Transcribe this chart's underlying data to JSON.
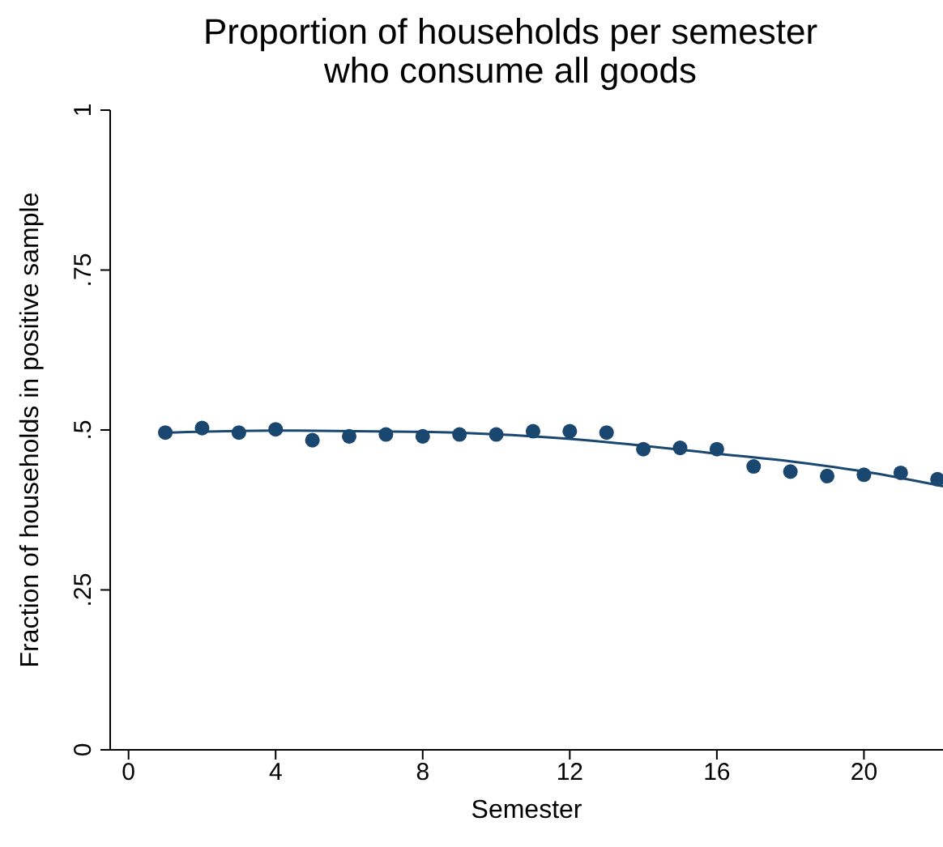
{
  "chart_data": {
    "type": "scatter",
    "title": "Proportion of households per semester\nwho consume all goods",
    "xlabel": "Semester",
    "ylabel": "Fraction of households in positive sample",
    "xlim": [
      -0.5,
      22.15
    ],
    "xticks": [
      0,
      4,
      8,
      12,
      16,
      20
    ],
    "ylim": [
      0,
      1
    ],
    "yticks": [
      {
        "value": 0,
        "label": "0"
      },
      {
        "value": 0.25,
        "label": ".25"
      },
      {
        "value": 0.5,
        "label": ".5"
      },
      {
        "value": 0.75,
        "label": ".75"
      },
      {
        "value": 1,
        "label": "1"
      }
    ],
    "grid": false,
    "marker": "circle",
    "series": [
      {
        "color": "#1a476f",
        "x": [
          1,
          2,
          3,
          4,
          5,
          6,
          7,
          8,
          9,
          10,
          11,
          12,
          13,
          14,
          15,
          16,
          17,
          18,
          19,
          20,
          21,
          22
        ],
        "values": [
          0.496,
          0.503,
          0.496,
          0.501,
          0.484,
          0.49,
          0.493,
          0.49,
          0.493,
          0.493,
          0.498,
          0.498,
          0.496,
          0.47,
          0.472,
          0.47,
          0.443,
          0.435,
          0.428,
          0.43,
          0.433,
          0.423
        ]
      },
      {
        "type": "line",
        "color": "#1a476f",
        "marker": "none",
        "x": [
          1,
          4,
          8,
          12,
          16,
          18,
          20,
          22.15
        ],
        "values": [
          0.496,
          0.499,
          0.497,
          0.486,
          0.463,
          0.451,
          0.435,
          0.412
        ]
      }
    ]
  }
}
